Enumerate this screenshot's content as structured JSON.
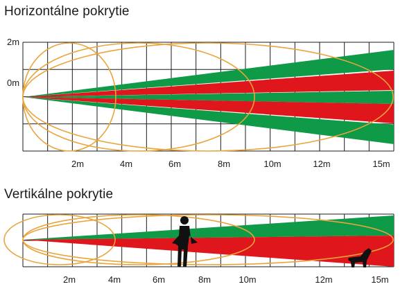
{
  "horizontal": {
    "title": "Horizontálne pokrytie",
    "y_labels": [
      "2m",
      "0m"
    ],
    "x_labels": [
      "2m",
      "4m",
      "6m",
      "8m",
      "10m",
      "12m",
      "15m"
    ]
  },
  "vertical": {
    "title": "Vertikálne pokrytie",
    "x_labels": [
      "2m",
      "4m",
      "6m",
      "8m",
      "10m",
      "12m",
      "15m"
    ]
  },
  "colors": {
    "green": "#0e9a47",
    "red": "#e0161d",
    "orange": "#e9a43a",
    "grid": "#1a1a1a"
  },
  "icons": [
    "person-silhouette-icon",
    "dog-silhouette-icon"
  ]
}
